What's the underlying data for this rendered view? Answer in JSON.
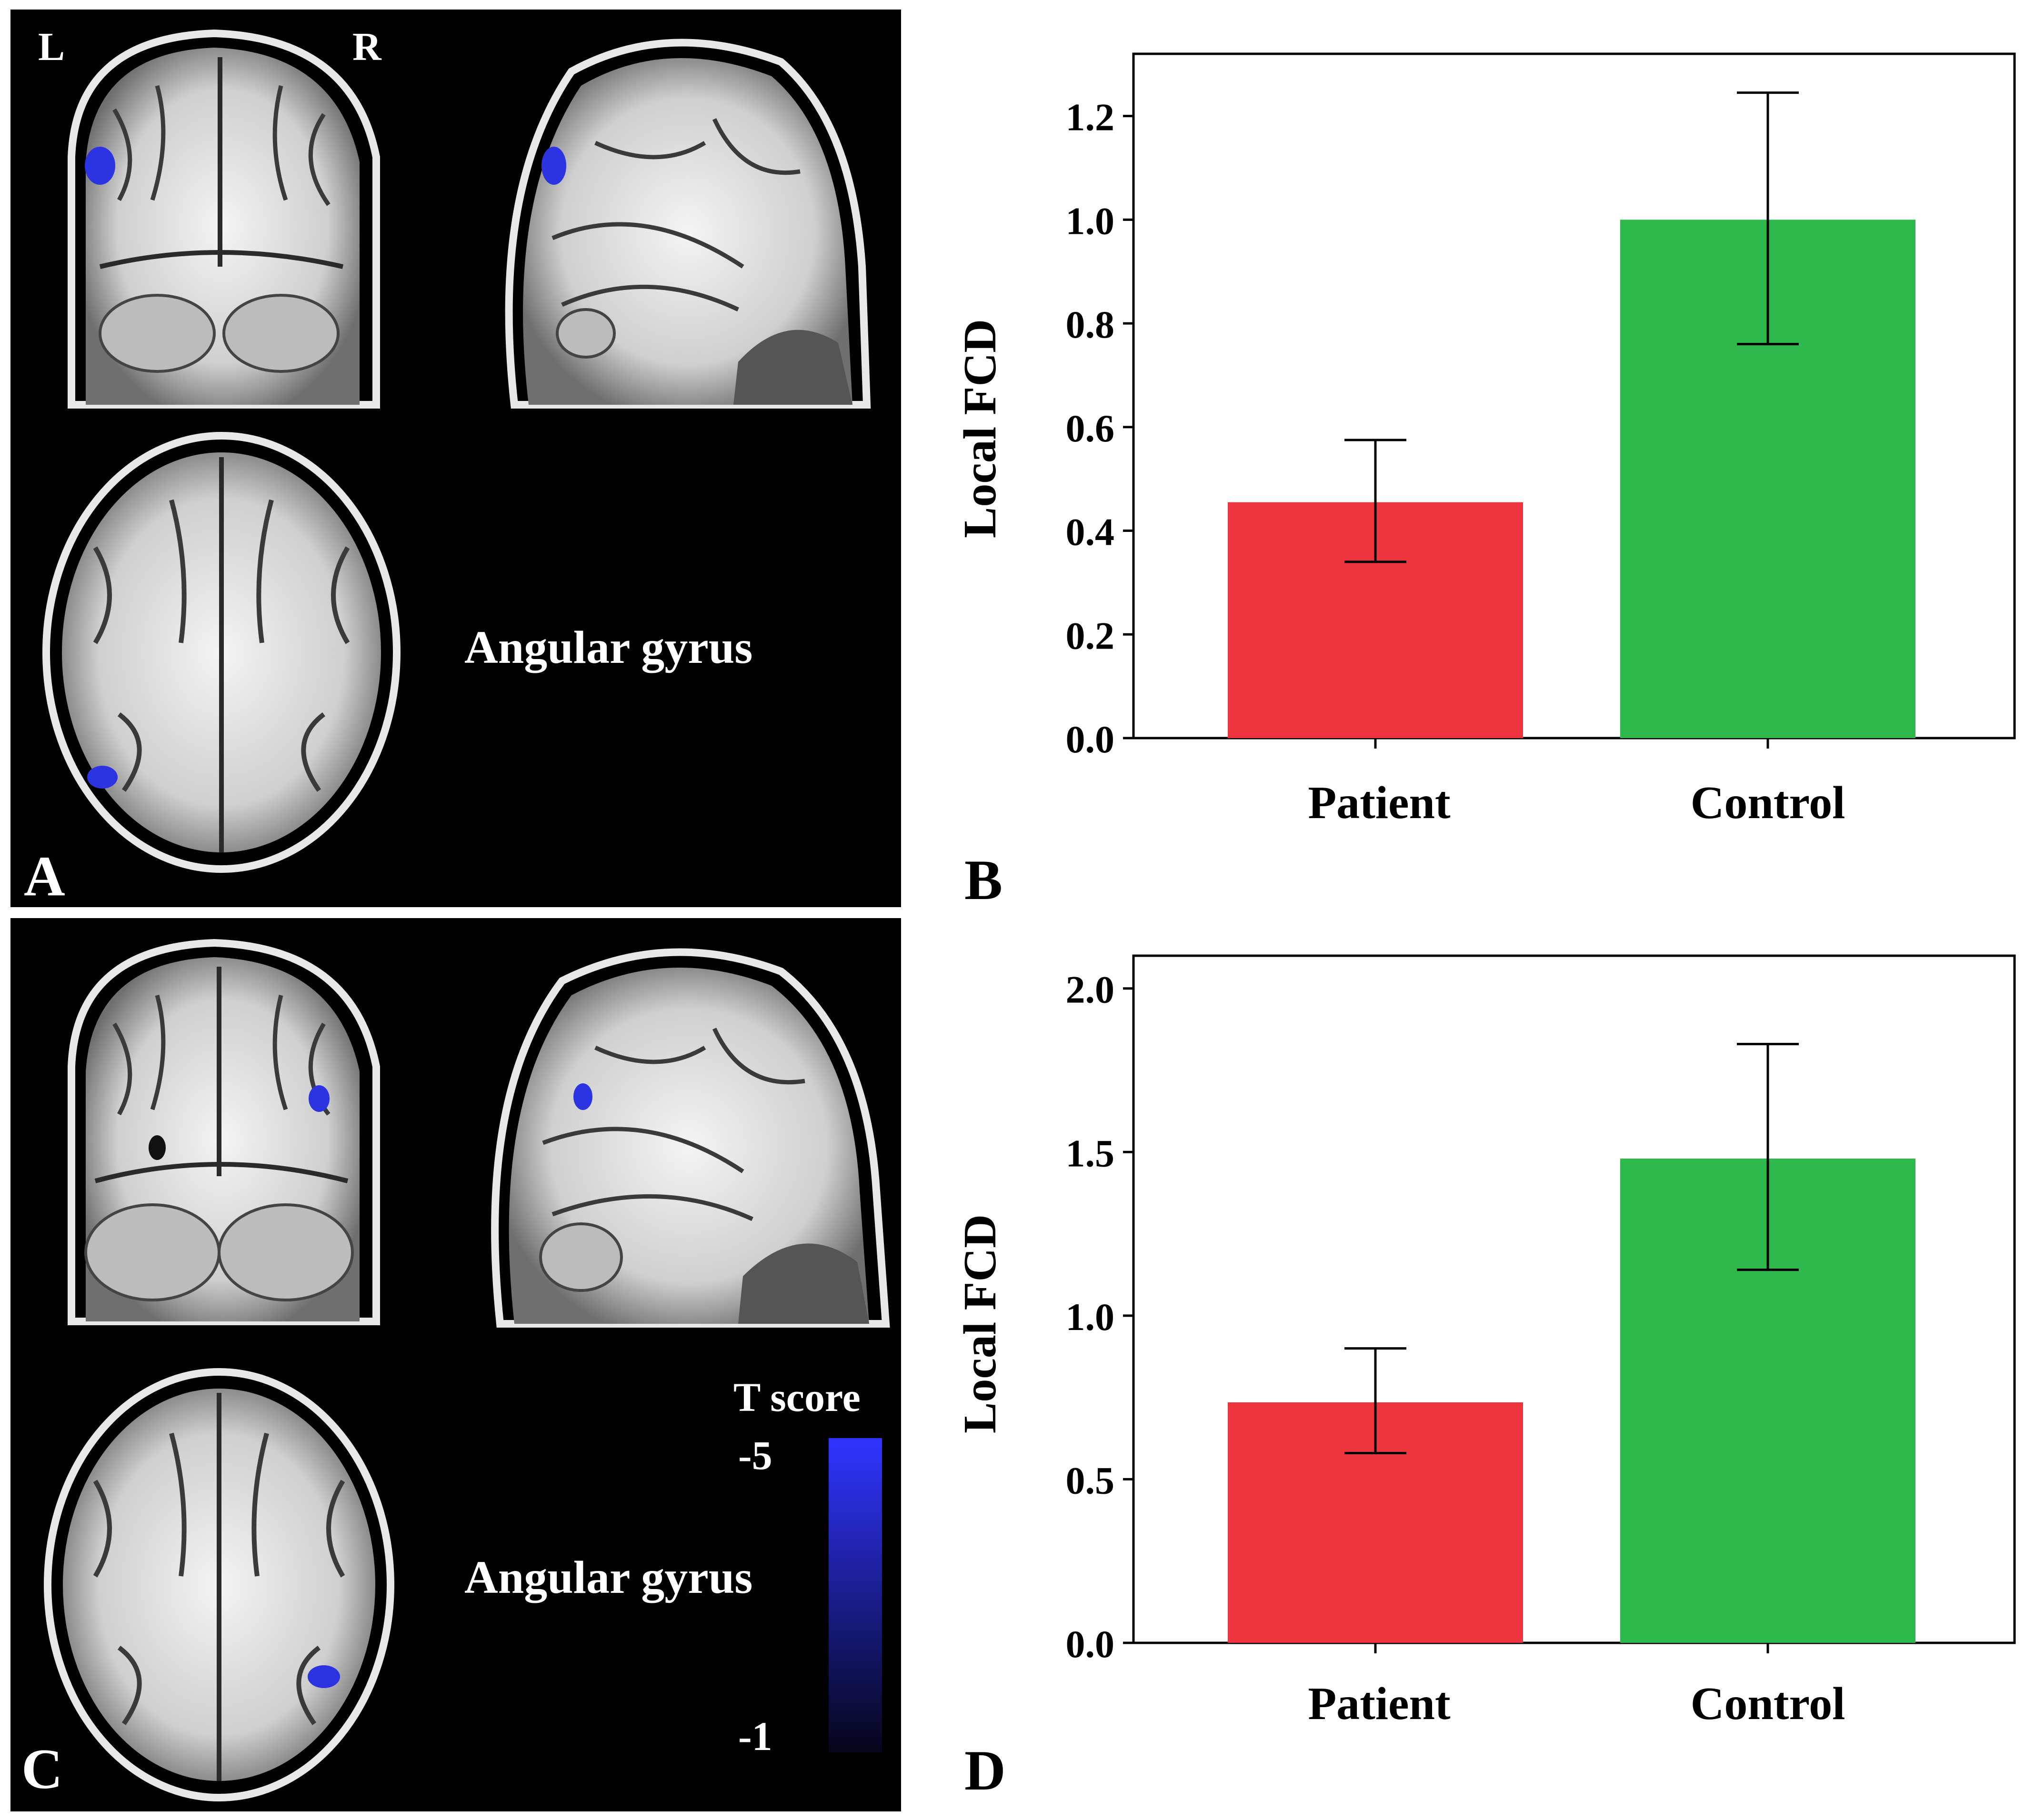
{
  "panels": {
    "A": {
      "letter": "A",
      "orientation_left": "L",
      "orientation_right": "R",
      "region_label": "Angular gyrus"
    },
    "B": {
      "letter": "B"
    },
    "C": {
      "letter": "C",
      "region_label": "Angular gyrus",
      "colorbar": {
        "title": "T score",
        "max_label": "-5",
        "min_label": "-1",
        "color_top": "#2f35ff",
        "color_bottom": "#05051a"
      }
    },
    "D": {
      "letter": "D"
    }
  },
  "colors": {
    "patient": "#ee343c",
    "control": "#2fb84b",
    "brain_background": "#000000",
    "activation": "#2c33e0"
  },
  "chart_data": [
    {
      "id": "B",
      "type": "bar",
      "categories": [
        "Patient",
        "Control"
      ],
      "values": [
        0.455,
        1.0
      ],
      "error_low": [
        0.34,
        0.76
      ],
      "error_high": [
        0.575,
        1.245
      ],
      "ylabel": "Local FCD",
      "xlabel": "",
      "ylim": [
        0,
        1.32
      ],
      "yticks": [
        0.0,
        0.2,
        0.4,
        0.6,
        0.8,
        1.0,
        1.2
      ],
      "ytick_labels": [
        "0.0",
        "0.2",
        "0.4",
        "0.6",
        "0.8",
        "1.0",
        "1.2"
      ],
      "grid": false
    },
    {
      "id": "D",
      "type": "bar",
      "categories": [
        "Patient",
        "Control"
      ],
      "values": [
        0.735,
        1.48
      ],
      "error_low": [
        0.58,
        1.14
      ],
      "error_high": [
        0.9,
        1.83
      ],
      "ylabel": "Local FCD",
      "xlabel": "",
      "ylim": [
        0,
        2.1
      ],
      "yticks": [
        0.0,
        0.5,
        1.0,
        1.5,
        2.0
      ],
      "ytick_labels": [
        "0.0",
        "0.5",
        "1.0",
        "1.5",
        "2.0"
      ],
      "grid": false
    }
  ]
}
